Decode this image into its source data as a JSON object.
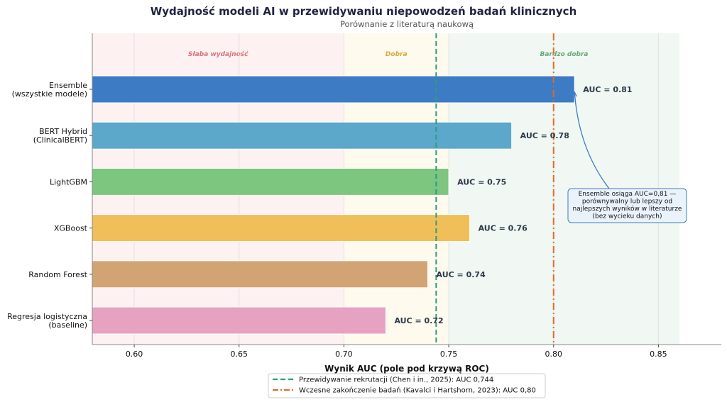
{
  "chart_data": {
    "type": "bar",
    "orientation": "horizontal",
    "title": "Wydajność modeli AI w przewidywaniu niepowodzeń badań klinicznych",
    "subtitle": "Porównanie z literaturą naukową",
    "xlabel": "Wynik AUC (pole pod krzywą ROC)",
    "xlim": [
      0.58,
      0.88
    ],
    "xticks": [
      "0.60",
      "0.65",
      "0.70",
      "0.75",
      "0.80",
      "0.85"
    ],
    "grid": "vertical",
    "categories": [
      [
        "Ensemble",
        "(wszystkie modele)"
      ],
      [
        "BERT Hybrid",
        "(ClinicalBERT)"
      ],
      [
        "LightGBM"
      ],
      [
        "XGBoost"
      ],
      [
        "Random Forest"
      ],
      [
        "Regresja logistyczna",
        "(baseline)"
      ]
    ],
    "values": [
      0.81,
      0.78,
      0.75,
      0.76,
      0.74,
      0.72
    ],
    "data_labels": [
      "AUC = 0.81",
      "AUC = 0.78",
      "AUC = 0.75",
      "AUC = 0.76",
      "AUC = 0.74",
      "AUC = 0.72"
    ],
    "colors": [
      "#3d7bc4",
      "#5ba8cb",
      "#7cc67f",
      "#f0bf5a",
      "#d2a474",
      "#e7a1c1"
    ],
    "zones": [
      {
        "label": "Słaba wydajność",
        "from": 0.58,
        "to": 0.7,
        "color": "#fdf1f1",
        "text_color": "#d9737a"
      },
      {
        "label": "Dobra",
        "from": 0.7,
        "to": 0.75,
        "color": "#fffaee",
        "text_color": "#d4a93a"
      },
      {
        "label": "Bardzo dobra",
        "from": 0.75,
        "to": 0.86,
        "color": "#f1f7f2",
        "text_color": "#6aa87a"
      }
    ],
    "reference_lines": [
      {
        "value": 0.744,
        "style": "dashed",
        "color": "#2a9d7f",
        "label": "Przewidywanie rekrutacji (Chen i in., 2025): AUC 0,744"
      },
      {
        "value": 0.8,
        "style": "dashdot",
        "color": "#e06a2c",
        "label": "Wczesne zakończenie badań (Kavalci i Hartshorn, 2023): AUC 0,80"
      }
    ],
    "annotation": {
      "lines": [
        "Ensemble osiąga AUC=0,81 —",
        "porównywalny lub lepszy od",
        "najlepszych wyników w literaturze",
        "(bez wycieku danych)"
      ],
      "points_to": {
        "category": 0,
        "value": 0.81
      }
    },
    "legend_position": "bottom-center"
  }
}
